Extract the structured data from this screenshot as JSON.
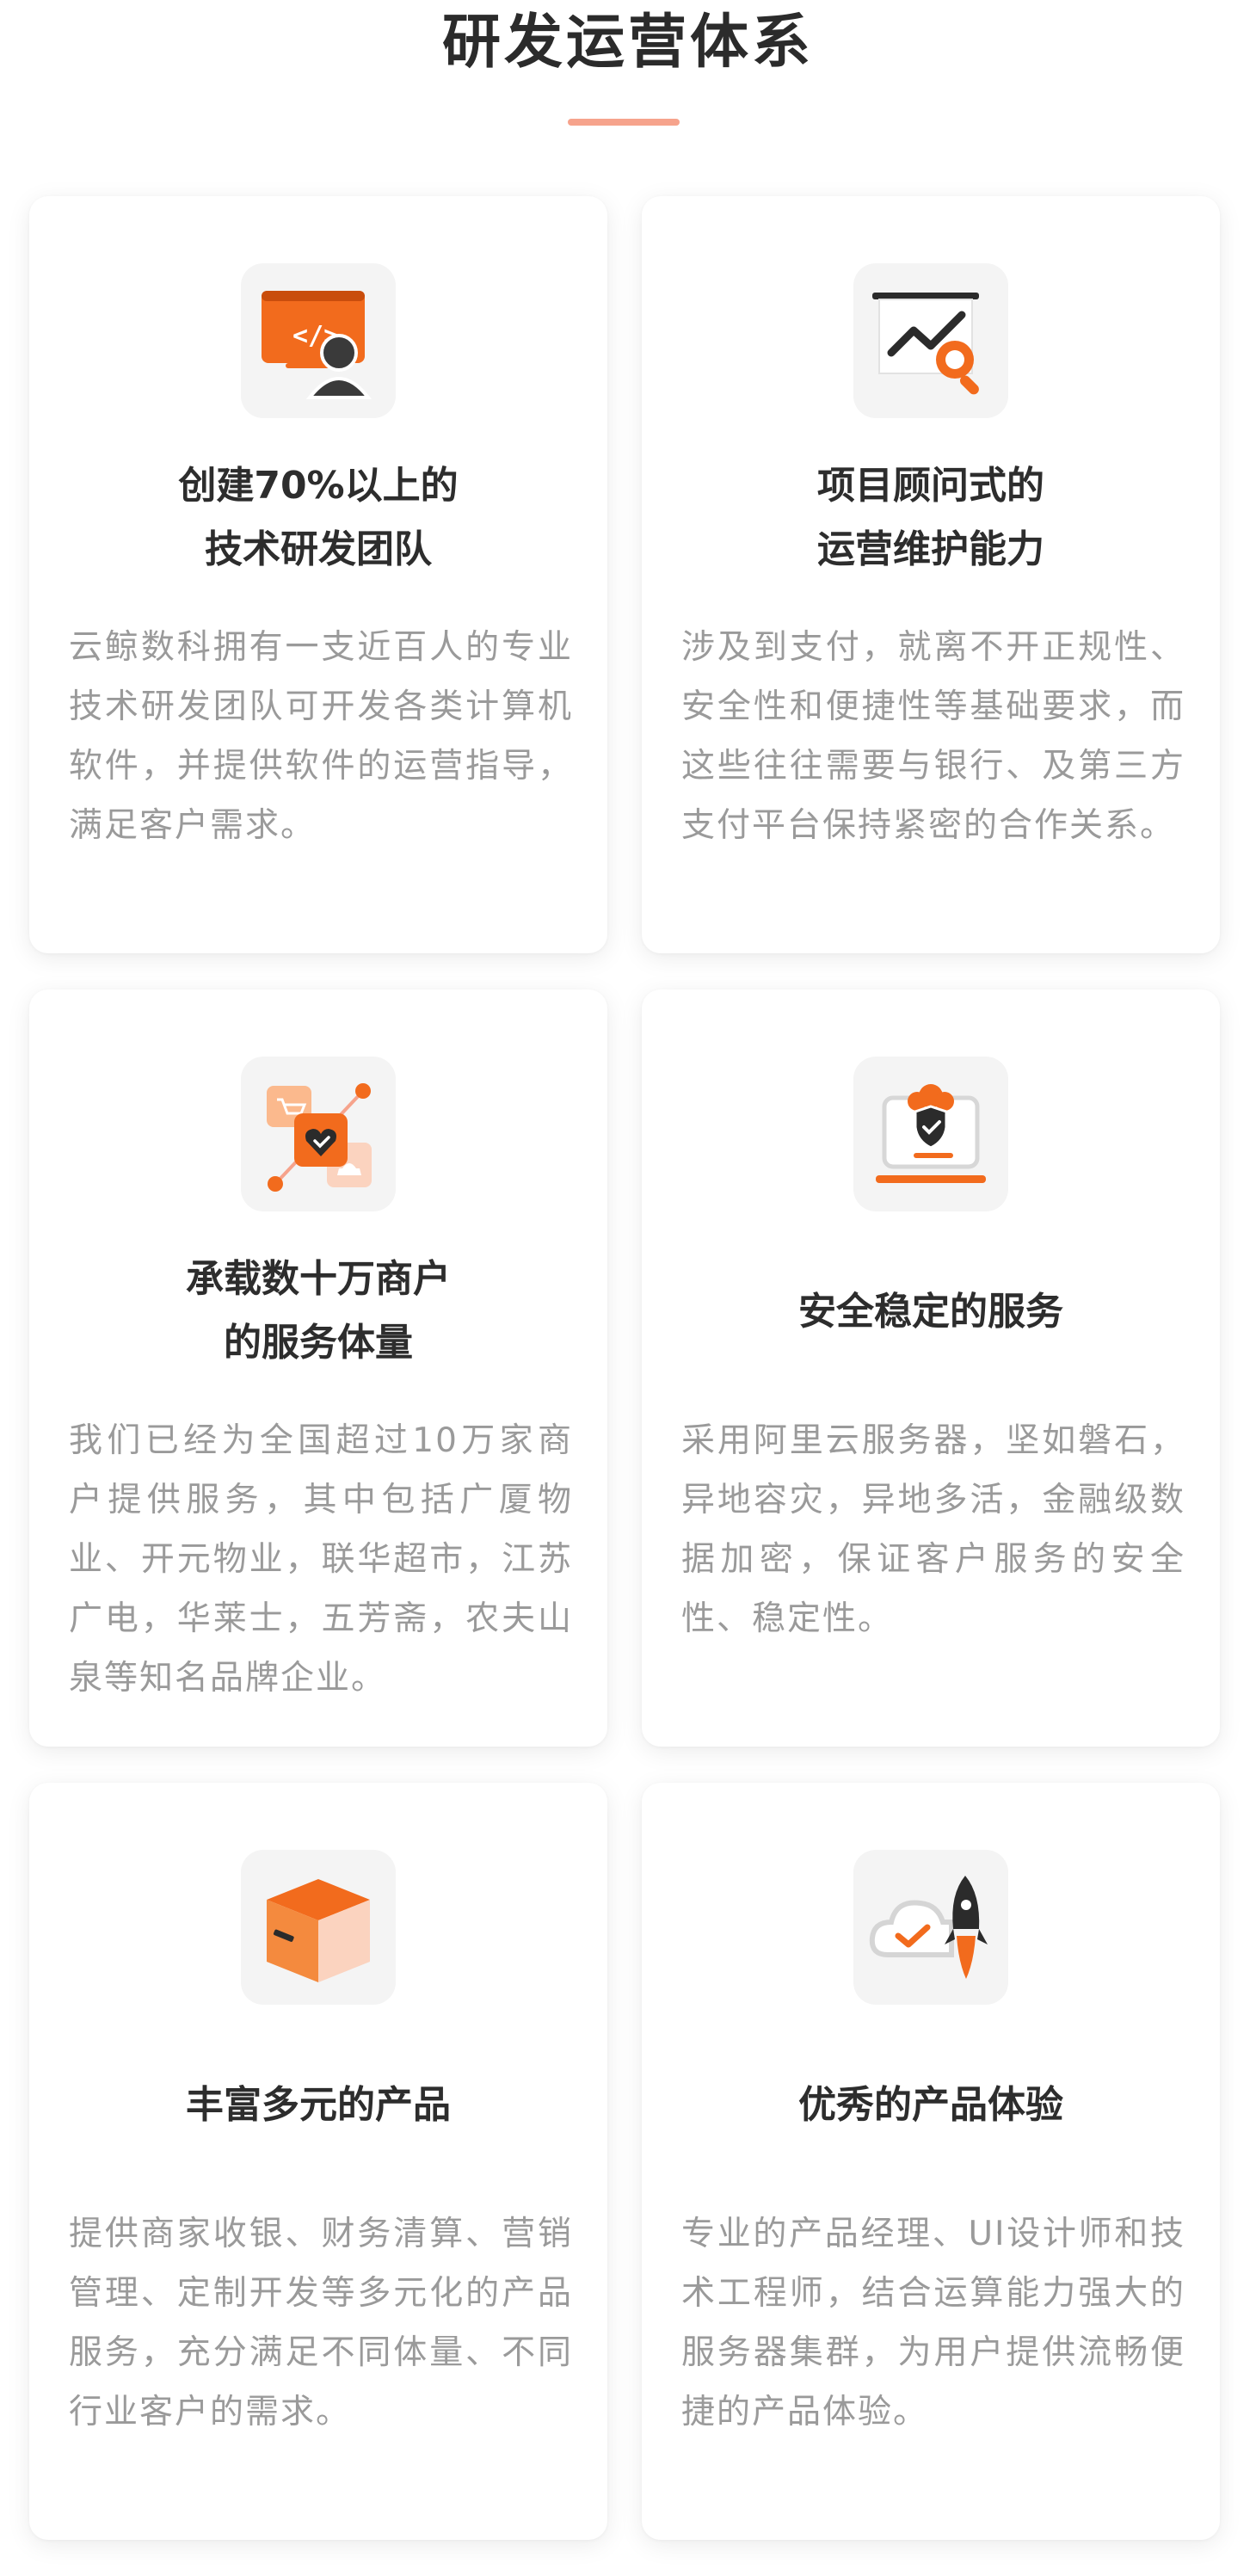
{
  "section": {
    "title": "研发运营体系"
  },
  "colors": {
    "accent": "#f26b1d",
    "accent_light": "#fbb98d",
    "underline": "#f6a38c",
    "title_text": "#2d2d2d",
    "desc_text": "#9a9a9a",
    "icon_bg": "#f4f4f4"
  },
  "cards": [
    {
      "icon": "code-developer-icon",
      "title_line1": "创建70%以上的",
      "title_line2": "技术研发团队",
      "desc": "云鲸数科拥有一支近百人的专业技术研发团队可开发各类计算机软件，并提供软件的运营指导，满足客户需求。"
    },
    {
      "icon": "chart-search-icon",
      "title_line1": "项目顾问式的",
      "title_line2": "运营维护能力",
      "desc": "涉及到支付，就离不开正规性、安全性和便捷性等基础要求，而这些往往需要与银行、及第三方支付平台保持紧密的合作关系。"
    },
    {
      "icon": "merchant-network-icon",
      "title_line1": "承载数十万商户",
      "title_line2": "的服务体量",
      "desc": "我们已经为全国超过10万家商户提供服务，其中包括广厦物业、开元物业，联华超市，江苏广电，华莱士，五芳斋，农夫山泉等知名品牌企业。"
    },
    {
      "icon": "secure-server-icon",
      "title_line1": "安全稳定的服务",
      "title_line2": "",
      "desc": "采用阿里云服务器，坚如磐石，异地容灾，异地多活，金融级数据加密，保证客户服务的安全性、稳定性。"
    },
    {
      "icon": "product-box-icon",
      "title_line1": "丰富多元的产品",
      "title_line2": "",
      "desc": "提供商家收银、财务清算、营销管理、定制开发等多元化的产品服务，充分满足不同体量、不同行业客户的需求。"
    },
    {
      "icon": "cloud-rocket-icon",
      "title_line1": "优秀的产品体验",
      "title_line2": "",
      "desc": "专业的产品经理、UI设计师和技术工程师，结合运算能力强大的服务器集群，为用户提供流畅便捷的产品体验。"
    }
  ]
}
